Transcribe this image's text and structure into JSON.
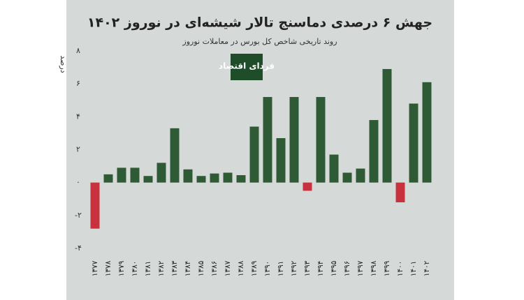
{
  "chart_data": {
    "type": "bar",
    "title": "جهش ۶ درصدی دماسنج تالار شیشه‌ای در نوروز ۱۴۰۲",
    "subtitle": "روند تاریخی شاخص کل بورس در معاملات نوروز",
    "y_label": "درصد",
    "logo": "فردای اقتصاد",
    "categories": [
      "۱۳۷۷",
      "۱۳۷۸",
      "۱۳۷۹",
      "۱۳۸۰",
      "۱۳۸۱",
      "۱۳۸۲",
      "۱۳۸۳",
      "۱۳۸۴",
      "۱۳۸۵",
      "۱۳۸۶",
      "۱۳۸۷",
      "۱۳۸۸",
      "۱۳۸۹",
      "۱۳۹۰",
      "۱۳۹۱",
      "۱۳۹۲",
      "۱۳۹۳",
      "۱۳۹۴",
      "۱۳۹۵",
      "۱۳۹۶",
      "۱۳۹۷",
      "۱۳۹۸",
      "۱۳۹۹",
      "۱۴۰۰",
      "۱۴۰۱",
      "۱۴۰۲"
    ],
    "values": [
      -2.8,
      0.5,
      0.9,
      0.9,
      0.4,
      1.2,
      3.3,
      0.8,
      0.4,
      0.55,
      0.6,
      0.45,
      3.4,
      5.2,
      2.7,
      5.2,
      -0.5,
      5.2,
      1.7,
      0.6,
      0.85,
      3.8,
      6.9,
      -1.2,
      4.8,
      6.1
    ],
    "color": "#2e5b36",
    "negative_color": "#c8323f",
    "ylim": [
      -4,
      8
    ],
    "yticks": [
      {
        "value": -4,
        "label": "-۴"
      },
      {
        "value": -2,
        "label": "-۲"
      },
      {
        "value": 0,
        "label": "۰"
      },
      {
        "value": 2,
        "label": "۲"
      },
      {
        "value": 4,
        "label": "۴"
      },
      {
        "value": 6,
        "label": "۶"
      },
      {
        "value": 8,
        "label": "۸"
      }
    ],
    "grid": false
  }
}
